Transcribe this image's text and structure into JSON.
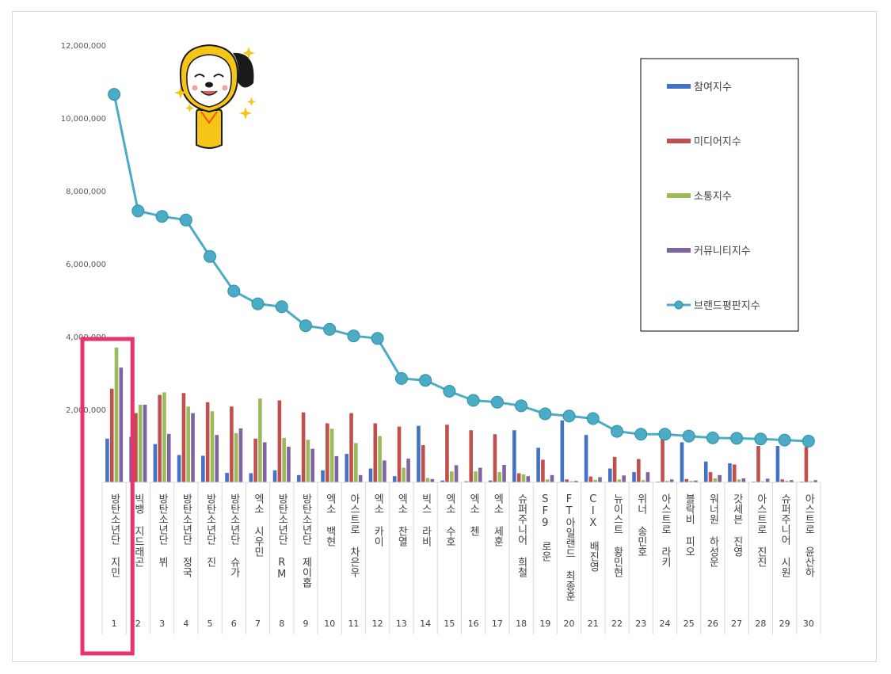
{
  "chart_data": {
    "type": "bar",
    "title": "",
    "xlabel": "",
    "ylabel": "",
    "ylim": [
      0,
      12000000
    ],
    "yticks": [
      2000000,
      4000000,
      6000000,
      8000000,
      10000000,
      12000000
    ],
    "ytick_labels": [
      "2,000,000",
      "4,000,000",
      "6,000,000",
      "8,000,000",
      "10,000,000",
      "12,000,000"
    ],
    "grid": false,
    "legend_position": "top-right",
    "highlight_rank": "1",
    "highlight_color": "#e8336b",
    "categories": [
      {
        "rank": "1",
        "name": "방탄소년단 지민"
      },
      {
        "rank": "2",
        "name": "빅뱅 지드래곤"
      },
      {
        "rank": "3",
        "name": "방탄소년단 뷔"
      },
      {
        "rank": "4",
        "name": "방탄소년단 정국"
      },
      {
        "rank": "5",
        "name": "방탄소년단 진"
      },
      {
        "rank": "6",
        "name": "방탄소년단 슈가"
      },
      {
        "rank": "7",
        "name": "엑소 시우민"
      },
      {
        "rank": "8",
        "name": "방탄소년단 RM"
      },
      {
        "rank": "9",
        "name": "방탄소년단 제이홉"
      },
      {
        "rank": "10",
        "name": "엑소 백현"
      },
      {
        "rank": "11",
        "name": "아스트로 차은우"
      },
      {
        "rank": "12",
        "name": "엑소 카이"
      },
      {
        "rank": "13",
        "name": "엑소 찬열"
      },
      {
        "rank": "14",
        "name": "빅스 라비"
      },
      {
        "rank": "15",
        "name": "엑소 수호"
      },
      {
        "rank": "16",
        "name": "엑소 첸"
      },
      {
        "rank": "17",
        "name": "엑소 세훈"
      },
      {
        "rank": "18",
        "name": "슈퍼주니어 희철"
      },
      {
        "rank": "19",
        "name": "SF9 로운"
      },
      {
        "rank": "20",
        "name": "FT아일랜드 최종훈"
      },
      {
        "rank": "21",
        "name": "CIX 배진영"
      },
      {
        "rank": "22",
        "name": "뉴이스트 황민현"
      },
      {
        "rank": "23",
        "name": "위너 송민호"
      },
      {
        "rank": "24",
        "name": "아스트로 라키"
      },
      {
        "rank": "25",
        "name": "블락비 피오"
      },
      {
        "rank": "26",
        "name": "워너원 하성운"
      },
      {
        "rank": "27",
        "name": "갓세븐 진영"
      },
      {
        "rank": "28",
        "name": "아스트로 진진"
      },
      {
        "rank": "29",
        "name": "슈퍼주니어 시원"
      },
      {
        "rank": "30",
        "name": "아스트로 윤산하"
      }
    ],
    "series": [
      {
        "name": "참여지수",
        "type": "bar",
        "color": "#4472c4",
        "values": [
          1200000,
          1250000,
          1050000,
          750000,
          730000,
          260000,
          250000,
          330000,
          200000,
          330000,
          780000,
          380000,
          170000,
          1550000,
          50000,
          30000,
          50000,
          1430000,
          950000,
          1700000,
          1300000,
          380000,
          280000,
          20000,
          1100000,
          570000,
          520000,
          20000,
          1000000,
          20000
        ]
      },
      {
        "name": "미디어지수",
        "type": "bar",
        "color": "#c0504d",
        "values": [
          2570000,
          1900000,
          2400000,
          2450000,
          2200000,
          2080000,
          1200000,
          2250000,
          1920000,
          1620000,
          1900000,
          1620000,
          1530000,
          1020000,
          1580000,
          1430000,
          1320000,
          250000,
          620000,
          80000,
          160000,
          700000,
          640000,
          1200000,
          90000,
          280000,
          490000,
          1000000,
          80000,
          970000
        ]
      },
      {
        "name": "소통지수",
        "type": "bar",
        "color": "#9bbb59",
        "values": [
          3700000,
          2130000,
          2470000,
          2080000,
          1950000,
          1350000,
          2300000,
          1220000,
          1170000,
          1470000,
          1080000,
          1270000,
          400000,
          120000,
          300000,
          300000,
          280000,
          220000,
          80000,
          30000,
          70000,
          80000,
          60000,
          40000,
          40000,
          110000,
          80000,
          30000,
          40000,
          30000
        ]
      },
      {
        "name": "커뮤니티지수",
        "type": "bar",
        "color": "#8064a2",
        "values": [
          3150000,
          2130000,
          1330000,
          1900000,
          1300000,
          1480000,
          1100000,
          980000,
          920000,
          720000,
          200000,
          600000,
          650000,
          90000,
          470000,
          400000,
          480000,
          170000,
          200000,
          40000,
          140000,
          190000,
          280000,
          80000,
          50000,
          200000,
          110000,
          100000,
          60000,
          60000
        ]
      },
      {
        "name": "브랜드평판지수",
        "type": "line",
        "color": "#4bacc6",
        "values": [
          10650000,
          7450000,
          7300000,
          7200000,
          6200000,
          5250000,
          4900000,
          4820000,
          4300000,
          4200000,
          4020000,
          3950000,
          2850000,
          2800000,
          2500000,
          2250000,
          2200000,
          2100000,
          1880000,
          1820000,
          1750000,
          1400000,
          1320000,
          1320000,
          1270000,
          1220000,
          1210000,
          1190000,
          1160000,
          1130000
        ]
      }
    ]
  }
}
